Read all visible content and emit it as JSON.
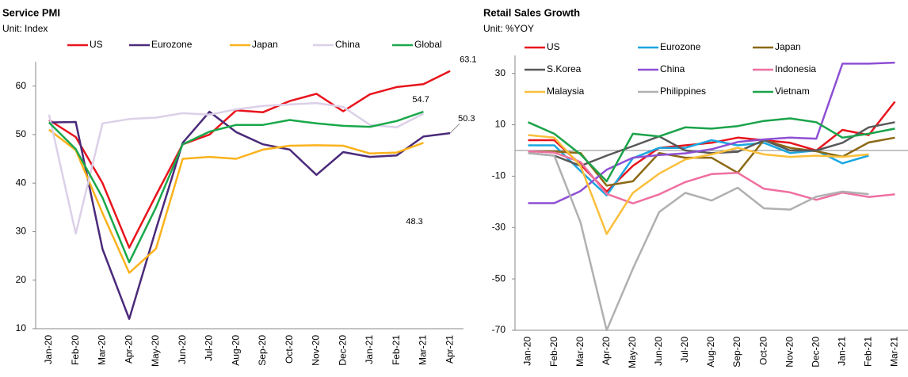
{
  "chart_data": [
    {
      "type": "line",
      "title": "Service PMI",
      "subtitle": "Unit: Index",
      "categories": [
        "Jan-20",
        "Feb-20",
        "Mar-20",
        "Apr-20",
        "May-20",
        "Jun-20",
        "Jul-20",
        "Aug-20",
        "Sep-20",
        "Oct-20",
        "Nov-20",
        "Dec-20",
        "Jan-21",
        "Feb-21",
        "Mar-21",
        "Apr-21"
      ],
      "series": [
        {
          "name": "US",
          "color": "#e8141c",
          "label_last": true,
          "values": [
            53,
            49.5,
            40,
            26.7,
            37.5,
            48,
            50,
            55,
            54.6,
            56.9,
            58.4,
            54.8,
            58.3,
            59.8,
            60.4,
            63.1
          ]
        },
        {
          "name": "Eurozone",
          "color": "#4b2a7a",
          "label_last": true,
          "values": [
            52.5,
            52.6,
            26.4,
            12,
            30.5,
            48.3,
            54.7,
            50.5,
            48,
            46.9,
            41.7,
            46.4,
            45.4,
            45.7,
            49.6,
            50.3
          ]
        },
        {
          "name": "Japan",
          "color": "#fbb21b",
          "label_last": true,
          "values": [
            51,
            46.8,
            33.8,
            21.5,
            26.5,
            45,
            45.4,
            45,
            46.9,
            47.7,
            47.8,
            47.7,
            46.1,
            46.3,
            48.3,
            null
          ]
        },
        {
          "name": "China",
          "color": "#dcd0e8",
          "label_last": false,
          "values": [
            54.1,
            29.6,
            52.3,
            53.2,
            53.5,
            54.4,
            54.1,
            55.2,
            55.9,
            56.2,
            56.5,
            55.7,
            52,
            51.5,
            54.3,
            null
          ]
        },
        {
          "name": "Global",
          "color": "#19a84a",
          "label_last": true,
          "values": [
            52.5,
            47,
            37,
            23.7,
            35,
            48,
            50.6,
            52,
            52,
            53,
            52.3,
            51.8,
            51.6,
            52.8,
            54.7,
            null
          ]
        }
      ],
      "ylim": [
        10,
        65
      ],
      "yticks": [
        10,
        20,
        30,
        40,
        50,
        60
      ],
      "zero_line": false
    },
    {
      "type": "line",
      "title": "Retail Sales Growth",
      "subtitle": "Unit: %YOY",
      "categories": [
        "Jan-20",
        "Feb-20",
        "Mar-20",
        "Apr-20",
        "May-20",
        "Jun-20",
        "Jul-20",
        "Aug-20",
        "Sep-20",
        "Oct-20",
        "Nov-20",
        "Dec-20",
        "Jan-21",
        "Feb-21",
        "Mar-21"
      ],
      "series": [
        {
          "name": "US",
          "color": "#e8141c",
          "label_last": false,
          "values": [
            4,
            4,
            -5.5,
            -16,
            -6,
            1,
            2,
            3,
            5,
            4,
            3,
            0,
            8,
            6,
            19
          ]
        },
        {
          "name": "Eurozone",
          "color": "#1aa7e0",
          "label_last": false,
          "values": [
            2,
            2,
            -8,
            -17.5,
            -3,
            1,
            1,
            4,
            2,
            3,
            -1,
            0,
            -5,
            -2,
            null
          ]
        },
        {
          "name": "Japan",
          "color": "#8b6914",
          "label_last": false,
          "values": [
            -0.4,
            -0.4,
            -1,
            -13.7,
            -12,
            -1,
            -2.8,
            -2.8,
            -8.7,
            4,
            1,
            -0.3,
            -2.4,
            3.1,
            5
          ]
        },
        {
          "name": "S.Korea",
          "color": "#595959",
          "label_last": false,
          "values": [
            -1,
            -2,
            -6,
            -2,
            1.7,
            5.5,
            0,
            -1,
            -0.5,
            4,
            0,
            0,
            3,
            9,
            11
          ]
        },
        {
          "name": "China",
          "color": "#8e4fd4",
          "label_last": false,
          "values": [
            -20.5,
            -20.5,
            -15.8,
            -7.5,
            -2.8,
            -1.8,
            -1.1,
            0.5,
            3.3,
            4.3,
            5,
            4.6,
            33.8,
            33.8,
            34.2
          ]
        },
        {
          "name": "Indonesia",
          "color": "#ef6fa0",
          "label_last": false,
          "values": [
            -0.3,
            -0.8,
            -4.5,
            -16.9,
            -20.6,
            -17.1,
            -12.3,
            -9.2,
            -8.7,
            -14.9,
            -16.3,
            -19.2,
            -16.4,
            -18.1,
            -17.1
          ]
        },
        {
          "name": "Malaysia",
          "color": "#fbbf3a",
          "label_last": false,
          "values": [
            6,
            5,
            -6,
            -32.5,
            -16.5,
            -9,
            -3.5,
            -1.5,
            1,
            -1.5,
            -2.5,
            -2,
            -2.5,
            -1.5,
            null
          ]
        },
        {
          "name": "Philippines",
          "color": "#b0b0b0",
          "label_last": false,
          "values": [
            -1,
            -2,
            -28,
            -70,
            -46,
            -24,
            -16.5,
            -19.5,
            -14.5,
            -22.5,
            -23,
            -18,
            -16,
            -17,
            null
          ]
        },
        {
          "name": "Vietnam",
          "color": "#1aa34a",
          "label_last": false,
          "values": [
            11,
            6.5,
            -1.5,
            -12,
            6.5,
            5.5,
            9,
            8.5,
            9.5,
            11.5,
            12.5,
            11,
            5,
            6.5,
            8.5
          ]
        }
      ],
      "ylim": [
        -70,
        37
      ],
      "yticks": [
        -70,
        -50,
        -30,
        -10,
        10,
        30
      ],
      "zero_line": true
    }
  ]
}
